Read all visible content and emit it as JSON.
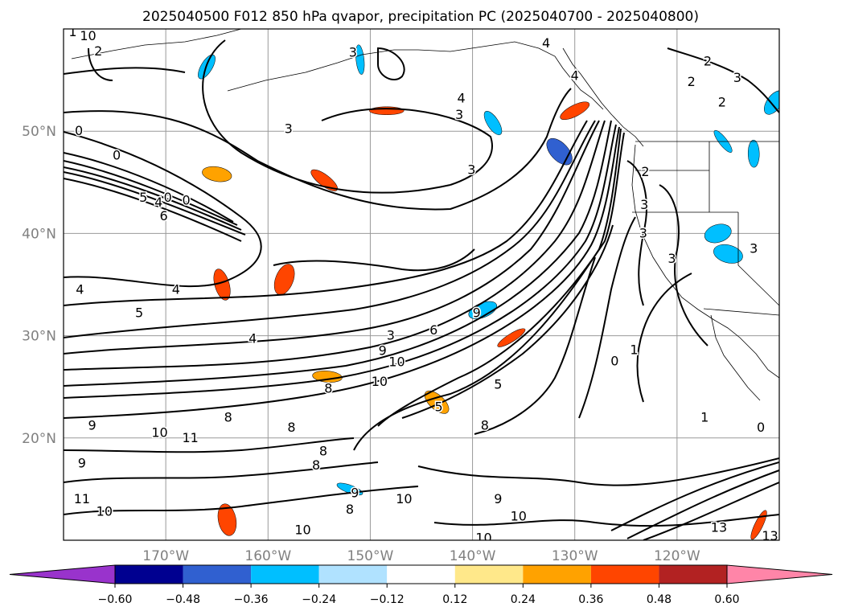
{
  "chart_data": {
    "type": "map-contour",
    "title": "2025040500 F012 850 hPa qvapor, precipitation PC (2025040700 - 2025040800)",
    "projection": "lat-lon",
    "extent": {
      "lon_min": -180,
      "lon_max": -110,
      "lat_min": 10,
      "lat_max": 60
    },
    "lon_ticks": [
      {
        "lon": -170,
        "label": "170°W"
      },
      {
        "lon": -160,
        "label": "160°W"
      },
      {
        "lon": -150,
        "label": "150°W"
      },
      {
        "lon": -140,
        "label": "140°W"
      },
      {
        "lon": -130,
        "label": "130°W"
      },
      {
        "lon": -120,
        "label": "120°W"
      }
    ],
    "lat_ticks": [
      {
        "lat": 20,
        "label": "20°N"
      },
      {
        "lat": 30,
        "label": "30°N"
      },
      {
        "lat": 40,
        "label": "40°N"
      },
      {
        "lat": 50,
        "label": "50°N"
      }
    ],
    "grid": true,
    "colorbar": {
      "orientation": "horizontal",
      "extend": "both",
      "bounds": [
        -0.6,
        -0.48,
        -0.36,
        -0.24,
        -0.12,
        0.12,
        0.24,
        0.36,
        0.48,
        0.6
      ],
      "tick_labels": [
        "−0.60",
        "−0.48",
        "−0.36",
        "−0.24",
        "−0.12",
        "0.12",
        "0.24",
        "0.36",
        "0.48",
        "0.60"
      ],
      "colors": [
        "#9933cc",
        "#000090",
        "#3060d0",
        "#00bfff",
        "#b0e2ff",
        "#ffffff",
        "#ffe88a",
        "#ffa200",
        "#ff4500",
        "#b22222",
        "#ff85a8"
      ]
    },
    "contour_labels": [
      {
        "text": "1",
        "lon": -179.1,
        "lat": 59.7
      },
      {
        "text": "10",
        "lon": -177.6,
        "lat": 59.3
      },
      {
        "text": "2",
        "lon": -176.6,
        "lat": 57.8
      },
      {
        "text": "3",
        "lon": -151.7,
        "lat": 57.7
      },
      {
        "text": "4",
        "lon": -132.8,
        "lat": 58.6
      },
      {
        "text": "4",
        "lon": -130.0,
        "lat": 55.4
      },
      {
        "text": "2",
        "lon": -117.0,
        "lat": 56.8
      },
      {
        "text": "3",
        "lon": -114.1,
        "lat": 55.2
      },
      {
        "text": "2",
        "lon": -118.6,
        "lat": 54.8
      },
      {
        "text": "2",
        "lon": -115.6,
        "lat": 52.8
      },
      {
        "text": "4",
        "lon": -141.1,
        "lat": 53.2
      },
      {
        "text": "3",
        "lon": -141.3,
        "lat": 51.6
      },
      {
        "text": "3",
        "lon": -158.0,
        "lat": 50.2
      },
      {
        "text": "0",
        "lon": -178.5,
        "lat": 50.0
      },
      {
        "text": "0",
        "lon": -174.8,
        "lat": 47.6
      },
      {
        "text": "3",
        "lon": -140.1,
        "lat": 46.2
      },
      {
        "text": "5",
        "lon": -172.2,
        "lat": 43.5
      },
      {
        "text": "0",
        "lon": -169.8,
        "lat": 43.5
      },
      {
        "text": "0",
        "lon": -168.0,
        "lat": 43.2
      },
      {
        "text": "4",
        "lon": -170.7,
        "lat": 43.0
      },
      {
        "text": "6",
        "lon": -170.2,
        "lat": 41.7
      },
      {
        "text": "2",
        "lon": -123.1,
        "lat": 46.0
      },
      {
        "text": "3",
        "lon": -123.2,
        "lat": 42.8
      },
      {
        "text": "3",
        "lon": -123.3,
        "lat": 40.0
      },
      {
        "text": "3",
        "lon": -120.5,
        "lat": 37.5
      },
      {
        "text": "3",
        "lon": -112.5,
        "lat": 38.5
      },
      {
        "text": "4",
        "lon": -178.4,
        "lat": 34.5
      },
      {
        "text": "4",
        "lon": -169.0,
        "lat": 34.5
      },
      {
        "text": "5",
        "lon": -172.6,
        "lat": 32.2
      },
      {
        "text": "4",
        "lon": -161.5,
        "lat": 29.7
      },
      {
        "text": "3",
        "lon": -148.0,
        "lat": 30.0
      },
      {
        "text": "6",
        "lon": -143.8,
        "lat": 30.5
      },
      {
        "text": "9",
        "lon": -139.6,
        "lat": 32.2
      },
      {
        "text": "9",
        "lon": -148.8,
        "lat": 28.5
      },
      {
        "text": "10",
        "lon": -147.4,
        "lat": 27.4
      },
      {
        "text": "10",
        "lon": -149.1,
        "lat": 25.5
      },
      {
        "text": "5",
        "lon": -137.5,
        "lat": 25.2
      },
      {
        "text": "1",
        "lon": -124.2,
        "lat": 28.6
      },
      {
        "text": "0",
        "lon": -126.1,
        "lat": 27.5
      },
      {
        "text": "8",
        "lon": -154.1,
        "lat": 24.8
      },
      {
        "text": "5",
        "lon": -143.3,
        "lat": 23.0
      },
      {
        "text": "8",
        "lon": -163.9,
        "lat": 22.0
      },
      {
        "text": "8",
        "lon": -157.7,
        "lat": 21.0
      },
      {
        "text": "8",
        "lon": -138.8,
        "lat": 21.2
      },
      {
        "text": "9",
        "lon": -177.2,
        "lat": 21.2
      },
      {
        "text": "10",
        "lon": -170.6,
        "lat": 20.5
      },
      {
        "text": "11",
        "lon": -167.6,
        "lat": 20.0
      },
      {
        "text": "9",
        "lon": -178.2,
        "lat": 17.5
      },
      {
        "text": "8",
        "lon": -154.6,
        "lat": 18.7
      },
      {
        "text": "8",
        "lon": -155.3,
        "lat": 17.3
      },
      {
        "text": "9",
        "lon": -151.5,
        "lat": 14.6
      },
      {
        "text": "8",
        "lon": -152.0,
        "lat": 13.0
      },
      {
        "text": "10",
        "lon": -146.7,
        "lat": 14.0
      },
      {
        "text": "9",
        "lon": -137.5,
        "lat": 14.0
      },
      {
        "text": "10",
        "lon": -135.5,
        "lat": 12.3
      },
      {
        "text": "11",
        "lon": -178.2,
        "lat": 14.0
      },
      {
        "text": "10",
        "lon": -176.0,
        "lat": 12.8
      },
      {
        "text": "10",
        "lon": -156.6,
        "lat": 11.0
      },
      {
        "text": "10",
        "lon": -138.9,
        "lat": 10.2
      },
      {
        "text": "13",
        "lon": -115.9,
        "lat": 11.2
      },
      {
        "text": "13",
        "lon": -110.9,
        "lat": 10.4
      },
      {
        "text": "1",
        "lon": -117.3,
        "lat": 22.0
      },
      {
        "text": "0",
        "lon": -111.8,
        "lat": 21.0
      }
    ],
    "precipitation_pc_patches": [
      {
        "value": 0.45,
        "lon": -148.4,
        "lat": 52.0
      },
      {
        "value": 0.4,
        "lon": -154.5,
        "lat": 45.2
      },
      {
        "value": 0.4,
        "lon": -164.5,
        "lat": 35.0
      },
      {
        "value": 0.4,
        "lon": -158.4,
        "lat": 35.5
      },
      {
        "value": 0.4,
        "lon": -136.2,
        "lat": 29.8
      },
      {
        "value": 0.35,
        "lon": -154.2,
        "lat": 26.0
      },
      {
        "value": 0.35,
        "lon": -143.5,
        "lat": 23.5
      },
      {
        "value": 0.4,
        "lon": -164.0,
        "lat": 12.0
      },
      {
        "value": 0.4,
        "lon": -112.0,
        "lat": 11.5
      },
      {
        "value": 0.4,
        "lon": -130.0,
        "lat": 52.0
      },
      {
        "value": 0.35,
        "lon": -165.0,
        "lat": 45.8
      },
      {
        "value": -0.4,
        "lon": -131.5,
        "lat": 48.0
      },
      {
        "value": -0.35,
        "lon": -151.0,
        "lat": 57.0
      },
      {
        "value": -0.3,
        "lon": -166.0,
        "lat": 56.3
      },
      {
        "value": -0.35,
        "lon": -139.0,
        "lat": 32.5
      },
      {
        "value": -0.35,
        "lon": -115.0,
        "lat": 38.0
      },
      {
        "value": -0.3,
        "lon": -115.5,
        "lat": 49.0
      },
      {
        "value": -0.3,
        "lon": -112.5,
        "lat": 47.8
      },
      {
        "value": -0.3,
        "lon": -110.5,
        "lat": 52.8
      },
      {
        "value": -0.3,
        "lon": -116.0,
        "lat": 40.0
      },
      {
        "value": -0.3,
        "lon": -152.0,
        "lat": 15.0
      },
      {
        "value": -0.3,
        "lon": -138.0,
        "lat": 50.8
      }
    ]
  }
}
